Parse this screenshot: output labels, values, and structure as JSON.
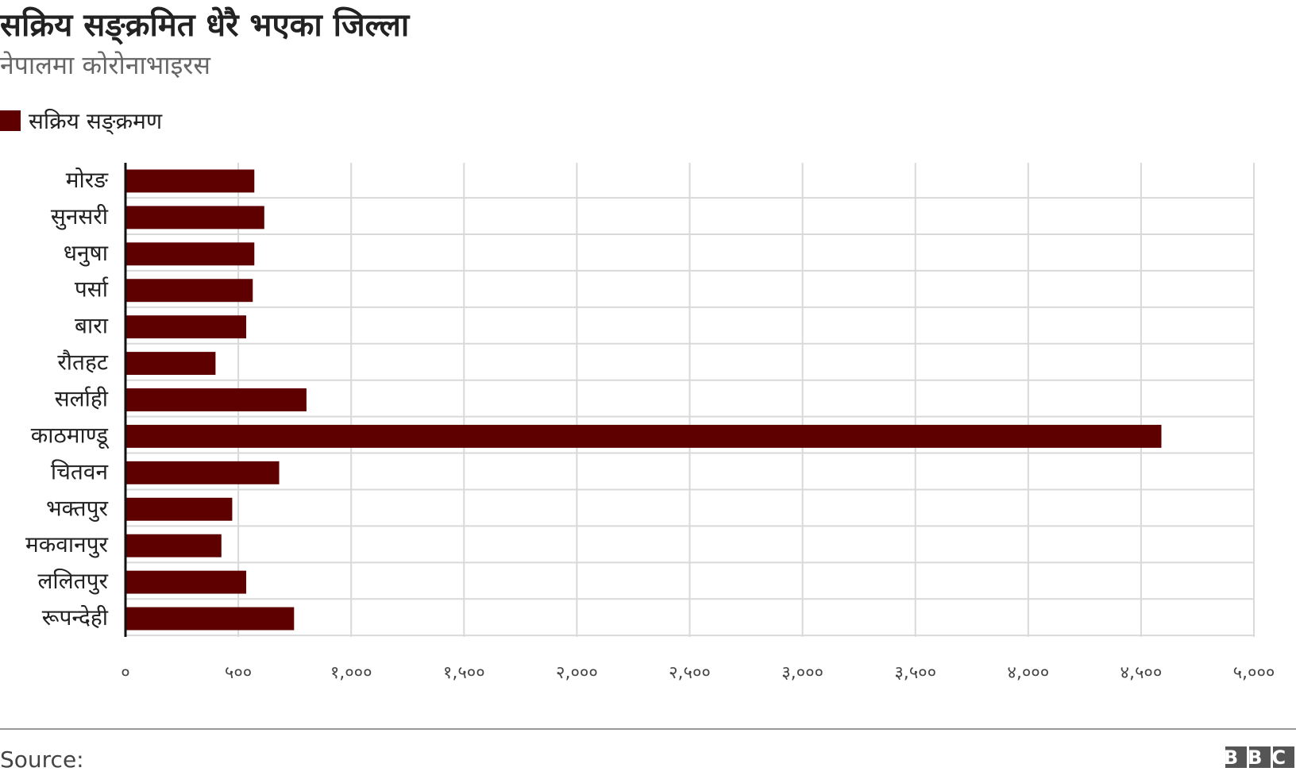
{
  "chart_data": {
    "type": "barh",
    "title": "सक्रिय सङ्क्रमित धेरै भएका जिल्ला",
    "subtitle": "नेपालमा कोरोनाभाइरस",
    "categories": [
      "मोरङ",
      "सुनसरी",
      "धनुषा",
      "पर्सा",
      "बारा",
      "रौतहट",
      "सर्लाही",
      "काठमाण्डू",
      "चितवन",
      "भक्तपुर",
      "मकवानपुर",
      "ललितपुर",
      "रूपन्देही"
    ],
    "series": [
      {
        "name": "सक्रिय सङ्क्रमण",
        "color": "#5e0000",
        "values": [
          571,
          615,
          571,
          564,
          535,
          399,
          802,
          4590,
          681,
          473,
          425,
          535,
          747
        ]
      }
    ],
    "xlim": [
      0,
      5000
    ],
    "xticks": [
      {
        "value": 0,
        "label": "०"
      },
      {
        "value": 500,
        "label": "५००"
      },
      {
        "value": 1000,
        "label": "१,०००"
      },
      {
        "value": 1500,
        "label": "१,५००"
      },
      {
        "value": 2000,
        "label": "२,०००"
      },
      {
        "value": 2500,
        "label": "२,५००"
      },
      {
        "value": 3000,
        "label": "३,०००"
      },
      {
        "value": 3500,
        "label": "३,५००"
      },
      {
        "value": 4000,
        "label": "४,०००"
      },
      {
        "value": 4500,
        "label": "४,५००"
      },
      {
        "value": 5000,
        "label": "५,०००"
      }
    ],
    "grid": true,
    "legend": "top-left",
    "source": "Source:",
    "logo": "BBC"
  }
}
